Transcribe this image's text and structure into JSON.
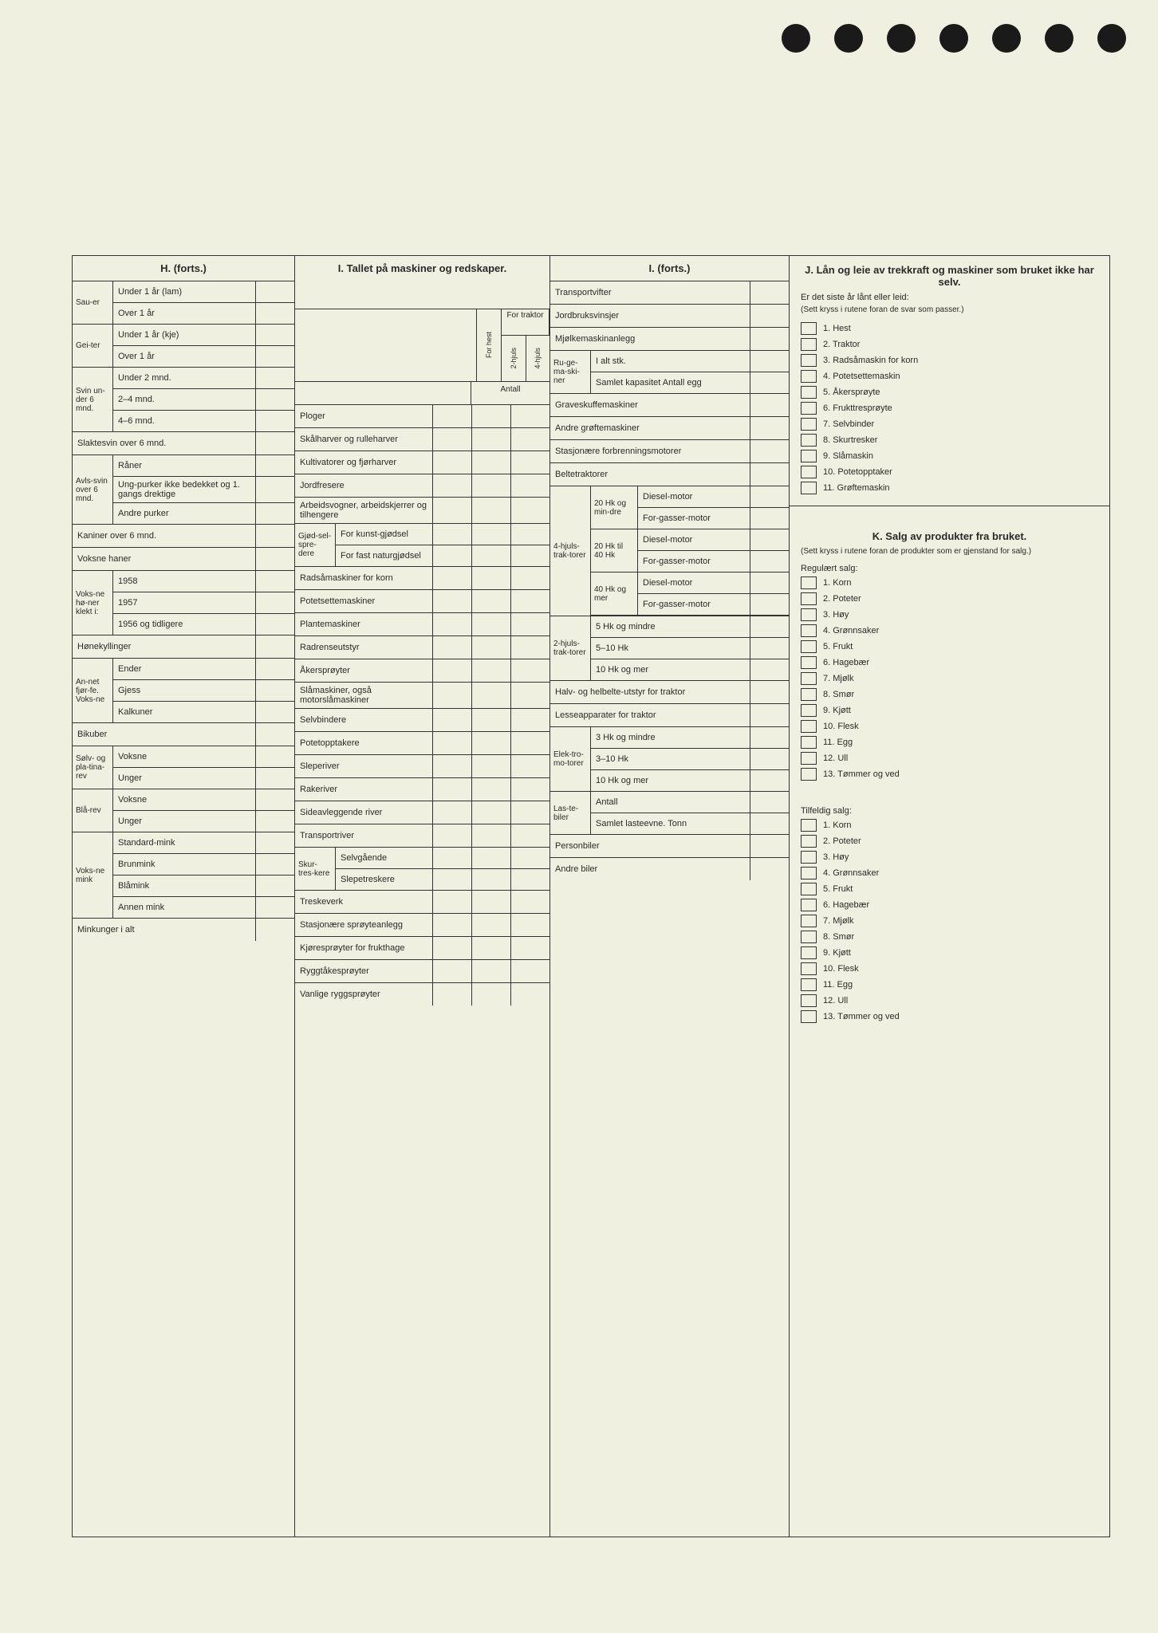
{
  "colors": {
    "bg": "#f0f0e0",
    "border": "#333",
    "hole": "#1a1a1a"
  },
  "H": {
    "title": "H. (forts.)",
    "groups": [
      {
        "label": "Sau-er",
        "rows": [
          "Under 1 år (lam)",
          "Over 1 år"
        ]
      },
      {
        "label": "Gei-ter",
        "rows": [
          "Under 1 år (kje)",
          "Over 1 år"
        ]
      },
      {
        "label": "Svin un-der 6 mnd.",
        "rows": [
          "Under 2 mnd.",
          "2–4 mnd.",
          "4–6 mnd."
        ]
      }
    ],
    "rows1": [
      "Slaktesvin over 6 mnd."
    ],
    "avls": {
      "label": "Avls-svin over 6 mnd.",
      "rows": [
        "Råner",
        "Ung-purker ikke bedekket og 1. gangs drektige",
        "Andre purker"
      ]
    },
    "rows2": [
      "Kaniner over 6 mnd.",
      "Voksne haner"
    ],
    "honer": {
      "label": "Voks-ne hø-ner klekt i:",
      "rows": [
        "1958",
        "1957",
        "1956 og tidligere"
      ]
    },
    "rows3": [
      "Hønekyllinger"
    ],
    "fjor": {
      "label": "An-net fjør-fe. Voks-ne",
      "rows": [
        "Ender",
        "Gjess",
        "Kalkuner"
      ]
    },
    "rows4": [
      "Bikuber"
    ],
    "solv": {
      "label": "Sølv- og pla-tina-rev",
      "rows": [
        "Voksne",
        "Unger"
      ]
    },
    "bla": {
      "label": "Blå-rev",
      "rows": [
        "Voksne",
        "Unger"
      ]
    },
    "mink": {
      "label": "Voks-ne mink",
      "rows": [
        "Standard-mink",
        "Brunmink",
        "Blåmink",
        "Annen mink"
      ]
    },
    "rows5": [
      "Minkunger i alt"
    ]
  },
  "I": {
    "title": "I. Tallet på maskiner og redskaper.",
    "colHeads": {
      "forhest": "For hest",
      "traktor": "For traktor",
      "h2": "2-hjuls",
      "h4": "4-hjuls",
      "antall": "Antall"
    },
    "rows": [
      "Ploger",
      "Skålharver og rulleharver",
      "Kultivatorer og fjørharver",
      "Jordfresere",
      "Arbeidsvogner, arbeidskjerrer og tilhengere"
    ],
    "gjod": {
      "label": "Gjød-sel-spre-dere",
      "rows": [
        "For kunst-gjødsel",
        "For fast naturgjødsel"
      ]
    },
    "rows2": [
      "Radsåmaskiner for korn",
      "Potetsettemaskiner",
      "Plantemaskiner",
      "Radrenseutstyr",
      "Åkersprøyter",
      "Slåmaskiner, også motorslåmaskiner",
      "Selvbindere",
      "Potetopptakere",
      "Sleperiver",
      "Rakeriver",
      "Sideavleggende river",
      "Transportriver"
    ],
    "skur": {
      "label": "Skur-tres-kere",
      "rows": [
        "Selvgående",
        "Slepetreskere"
      ]
    },
    "rows3": [
      "Treskeverk",
      "Stasjonære sprøyteanlegg",
      "Kjøresprøyter for frukthage",
      "Ryggtåkesprøyter",
      "Vanlige ryggsprøyter"
    ]
  },
  "I2": {
    "title": "I. (forts.)",
    "rows": [
      "Transportvifter",
      "Jordbruksvinsjer",
      "Mjølkemaskinanlegg"
    ],
    "ruge": {
      "label": "Ru-ge-ma-ski-ner",
      "rows": [
        "I alt stk.",
        "Samlet kapasitet Antall egg"
      ]
    },
    "rows2": [
      "Graveskuffemaskiner",
      "Andre grøftemaskiner",
      "Stasjonære forbrenningsmotorer",
      "Beltetraktorer"
    ],
    "trak4": {
      "label": "4-hjuls-trak-torer",
      "sub": [
        {
          "hk": "20 Hk og min-dre",
          "rows": [
            "Diesel-motor",
            "For-gasser-motor"
          ]
        },
        {
          "hk": "20 Hk til 40 Hk",
          "rows": [
            "Diesel-motor",
            "For-gasser-motor"
          ]
        },
        {
          "hk": "40 Hk og mer",
          "rows": [
            "Diesel-motor",
            "For-gasser-motor"
          ]
        }
      ]
    },
    "trak2": {
      "label": "2-hjuls-trak-torer",
      "rows": [
        "5 Hk og mindre",
        "5–10 Hk",
        "10 Hk og mer"
      ]
    },
    "rows3": [
      "Halv- og helbelte-utstyr for traktor",
      "Lesseapparater for traktor"
    ],
    "elek": {
      "label": "Elek-tro-mo-torer",
      "rows": [
        "3 Hk og mindre",
        "3–10 Hk",
        "10 Hk og mer"
      ]
    },
    "laste": {
      "label": "Las-te-biler",
      "rows": [
        "Antall",
        "Samlet lasteevne. Tonn"
      ]
    },
    "rows4": [
      "Personbiler",
      "Andre biler"
    ]
  },
  "J": {
    "title": "J. Lån og leie av trekkraft og maskiner som bruket ikke har selv.",
    "intro": "Er det siste år lånt eller leid:",
    "note": "(Sett kryss i rutene foran de svar som passer.)",
    "items": [
      "Hest",
      "Traktor",
      "Radsåmaskin for korn",
      "Potetsettemaskin",
      "Åkersprøyte",
      "Frukttresprøyte",
      "Selvbinder",
      "Skurtresker",
      "Slåmaskin",
      "Potetopptaker",
      "Grøftemaskin"
    ]
  },
  "K": {
    "title": "K. Salg av produkter fra bruket.",
    "note": "(Sett kryss i rutene foran de produkter som er gjenstand for salg.)",
    "reg": "Regulært salg:",
    "regItems": [
      "Korn",
      "Poteter",
      "Høy",
      "Grønnsaker",
      "Frukt",
      "Hagebær",
      "Mjølk",
      "Smør",
      "Kjøtt",
      "Flesk",
      "Egg",
      "Ull",
      "Tømmer og ved"
    ],
    "tilf": "Tilfeldig salg:",
    "tilfItems": [
      "Korn",
      "Poteter",
      "Høy",
      "Grønnsaker",
      "Frukt",
      "Hagebær",
      "Mjølk",
      "Smør",
      "Kjøtt",
      "Flesk",
      "Egg",
      "Ull",
      "Tømmer og ved"
    ]
  }
}
